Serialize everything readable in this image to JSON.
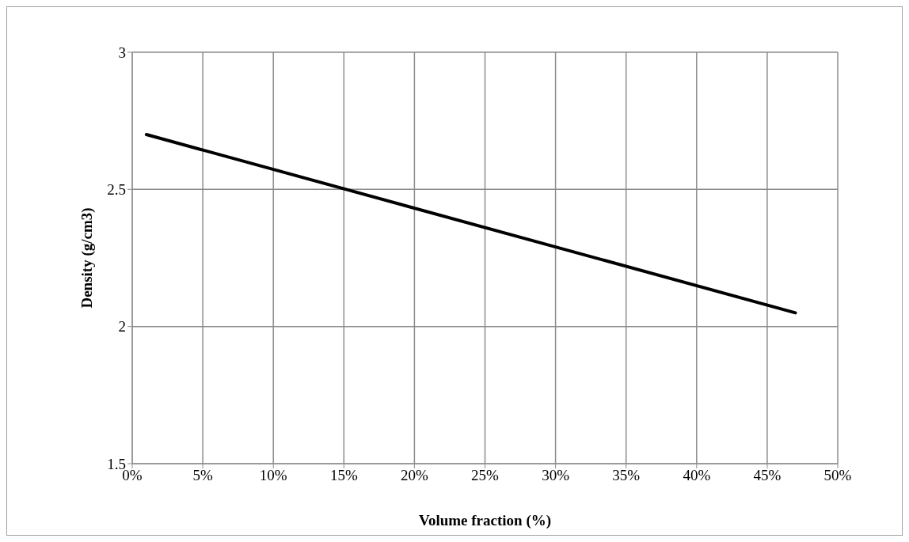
{
  "chart_data": {
    "type": "line",
    "xlabel": "Volume fraction (%)",
    "ylabel": "Density (g/cm3)",
    "x": [
      1,
      47
    ],
    "series": [
      {
        "color": "#000000",
        "values": [
          2.7,
          2.05
        ]
      }
    ],
    "xlim": [
      0,
      50
    ],
    "xticks": [
      {
        "value": 0,
        "label": "0%"
      },
      {
        "value": 5,
        "label": "5%"
      },
      {
        "value": 10,
        "label": "10%"
      },
      {
        "value": 15,
        "label": "15%"
      },
      {
        "value": 20,
        "label": "20%"
      },
      {
        "value": 25,
        "label": "25%"
      },
      {
        "value": 30,
        "label": "30%"
      },
      {
        "value": 35,
        "label": "35%"
      },
      {
        "value": 40,
        "label": "40%"
      },
      {
        "value": 45,
        "label": "45%"
      },
      {
        "value": 50,
        "label": "50%"
      }
    ],
    "ylim": [
      1.5,
      3
    ],
    "yticks": [
      1.5,
      2,
      2.5,
      3
    ],
    "grid": true,
    "marker": "none",
    "line_style": "solid",
    "legend": false
  }
}
